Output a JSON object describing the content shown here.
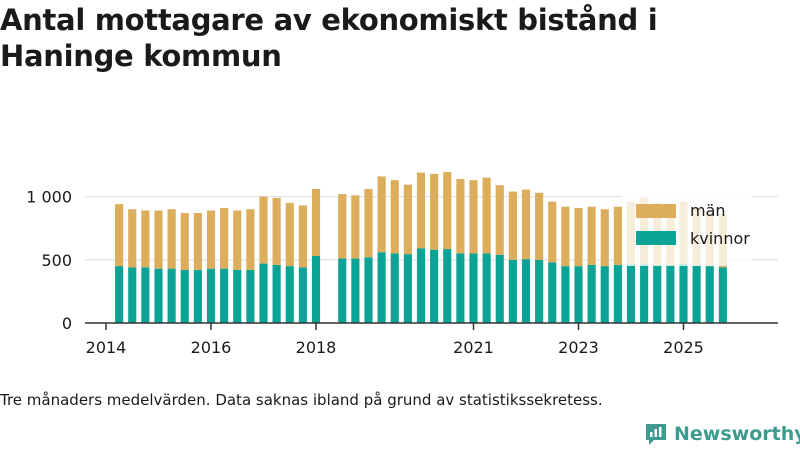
{
  "title": "Antal mottagare av ekonomiskt bistånd i Haninge kommun",
  "caption": "Tre månaders medelvärden. Data saknas ibland på grund av statistikssekretess.",
  "brand": "Newsworthy",
  "colors": {
    "men": "#dcad5a",
    "women": "#0ca397",
    "grid": "#dedede",
    "axis": "#333333"
  },
  "chart_data": {
    "type": "bar",
    "stacked": true,
    "x_start": 2014.25,
    "x_step": 0.25,
    "xlim": [
      2013.6,
      2026.8
    ],
    "ylim": [
      0,
      1250
    ],
    "y_ticks": [
      0,
      500,
      1000
    ],
    "y_tick_labels": [
      "0",
      "500",
      "1 000"
    ],
    "x_ticks": [
      2014,
      2016,
      2018,
      2021,
      2023,
      2025
    ],
    "x_tick_labels": [
      "2014",
      "2016",
      "2018",
      "2021",
      "2023",
      "2025"
    ],
    "legend_position": "right",
    "series": [
      {
        "name": "kvinnor",
        "color": "#0ca397",
        "values": [
          450,
          440,
          440,
          430,
          430,
          420,
          420,
          430,
          430,
          420,
          420,
          470,
          460,
          450,
          440,
          530,
          null,
          510,
          510,
          520,
          560,
          550,
          545,
          590,
          580,
          585,
          550,
          550,
          550,
          540,
          500,
          505,
          500,
          480,
          450,
          450,
          460,
          450,
          460,
          470,
          470,
          460,
          460,
          470,
          460,
          450,
          440
        ]
      },
      {
        "name": "män",
        "color": "#dcad5a",
        "values": [
          490,
          460,
          450,
          460,
          470,
          450,
          450,
          460,
          480,
          470,
          480,
          530,
          530,
          500,
          490,
          530,
          null,
          510,
          500,
          540,
          600,
          580,
          550,
          600,
          600,
          610,
          590,
          580,
          600,
          550,
          540,
          550,
          530,
          480,
          470,
          460,
          460,
          450,
          460,
          490,
          520,
          490,
          480,
          490,
          450,
          440,
          420
        ]
      }
    ]
  }
}
